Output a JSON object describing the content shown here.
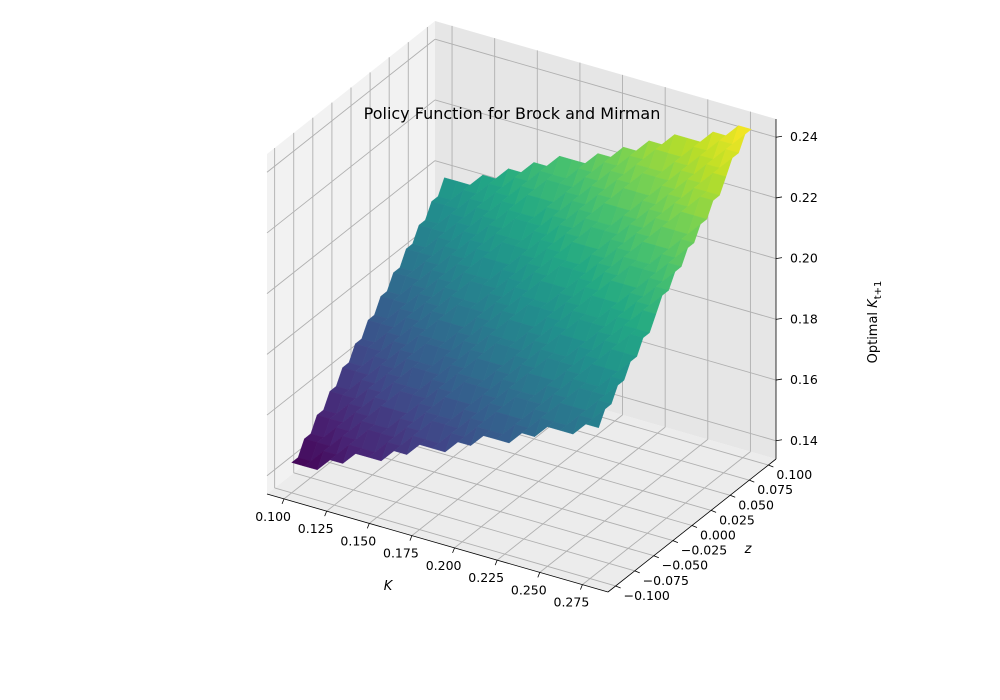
{
  "chart_data": {
    "type": "surface",
    "title": "Policy Function for Brock and Mirman",
    "xlabel": "K",
    "ylabel": "z",
    "zlabel_prefix": "Optimal ",
    "zlabel_var": "K",
    "zlabel_sub": "t+1",
    "xlim": [
      0.09,
      0.29
    ],
    "ylim": [
      -0.11,
      0.11
    ],
    "zlim": [
      0.134,
      0.246
    ],
    "x_ticks": [
      "0.100",
      "0.125",
      "0.150",
      "0.175",
      "0.200",
      "0.225",
      "0.250",
      "0.275"
    ],
    "x_tick_values": [
      0.1,
      0.125,
      0.15,
      0.175,
      0.2,
      0.225,
      0.25,
      0.275
    ],
    "y_ticks": [
      "−0.100",
      "−0.075",
      "−0.050",
      "−0.025",
      "0.000",
      "0.025",
      "0.050",
      "0.075",
      "0.100"
    ],
    "y_tick_values": [
      -0.1,
      -0.075,
      -0.05,
      -0.025,
      0,
      0.025,
      0.05,
      0.075,
      0.1
    ],
    "z_ticks": [
      "0.14",
      "0.16",
      "0.18",
      "0.20",
      "0.22",
      "0.24"
    ],
    "z_tick_values": [
      0.14,
      0.16,
      0.18,
      0.2,
      0.22,
      0.24
    ],
    "k_range": [
      0.1,
      0.28
    ],
    "z_range": [
      -0.1,
      0.1
    ],
    "policy_at_corners": {
      "k_min_z_min": 0.142,
      "k_max_z_min": 0.185,
      "k_min_z_max": 0.196,
      "k_max_z_max": 0.244
    },
    "colormap": "viridis",
    "grid": true
  }
}
